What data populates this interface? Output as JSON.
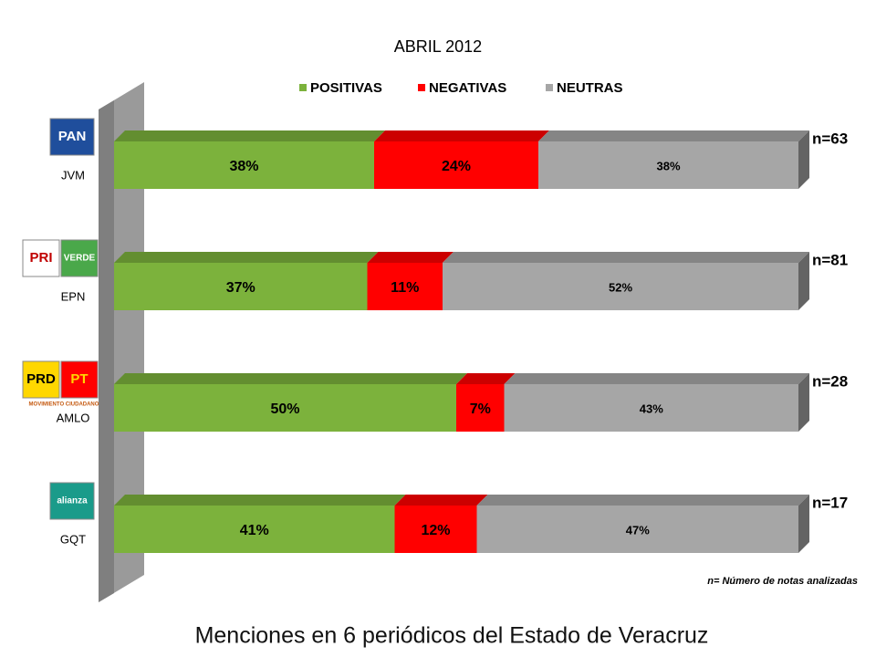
{
  "chart_data": {
    "type": "stacked-bar-3d",
    "title": "ABRIL 2012",
    "categories": [
      "JVM",
      "EPN",
      "AMLO",
      "GQT"
    ],
    "series": [
      {
        "name": "POSITIVAS",
        "color": "#7cb23c",
        "values": [
          38,
          37,
          50,
          41
        ],
        "value_labels": [
          "38%",
          "37%",
          "50%",
          "41%"
        ]
      },
      {
        "name": "NEGATIVAS",
        "color": "#ff0000",
        "values": [
          24,
          11,
          7,
          12
        ],
        "value_labels": [
          "24%",
          "11%",
          "7%",
          "12%"
        ]
      },
      {
        "name": "NEUTRAS",
        "color": "#a6a6a6",
        "values": [
          38,
          52,
          43,
          47
        ],
        "value_labels": [
          "38%",
          "52%",
          "43%",
          "47%"
        ]
      }
    ],
    "xlim": [
      0,
      100
    ],
    "n_labels": [
      "n=63",
      "n=81",
      "n=28",
      "n=17"
    ],
    "logos": [
      [
        "PAN"
      ],
      [
        "PRI",
        "VERDE"
      ],
      [
        "PRD",
        "PT",
        "MOVIMIENTO CIUDADANO"
      ],
      [
        "alianza"
      ]
    ],
    "footnote": "n= Número de notas  analizadas",
    "caption": "Menciones en 6 periódicos del Estado de Veracruz"
  }
}
